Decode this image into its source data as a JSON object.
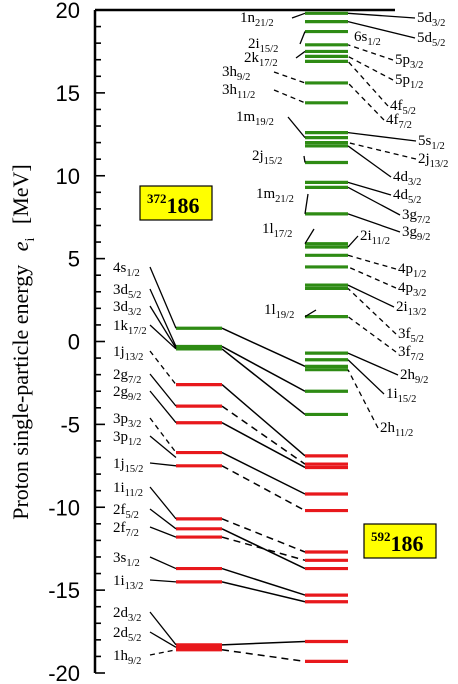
{
  "chart_data": {
    "type": "diagram",
    "ylabel": "Proton single-particle energy",
    "ylabel_symbol": "e",
    "ylabel_symbol_sub": "i",
    "ylabel_unit": "[MeV]",
    "ylim": [
      -20,
      20
    ],
    "yticks": [
      "20",
      "15",
      "10",
      "5",
      "0",
      "-5",
      "-10",
      "-15",
      "-20"
    ],
    "colors": {
      "occupied": "#e8181c",
      "unoccupied": "#2e8b14",
      "box": "#ffff00"
    },
    "nuclei": [
      {
        "mass": "372",
        "Z": "186",
        "column": "left"
      },
      {
        "mass": "592",
        "Z": "186",
        "column": "right"
      }
    ],
    "left_labels": [
      {
        "n": "4s",
        "j": "1/2"
      },
      {
        "n": "3d",
        "j": "5/2"
      },
      {
        "n": "3d",
        "j": "3/2"
      },
      {
        "n": "1k",
        "j": "17/2"
      },
      {
        "n": "1j",
        "j": "13/2"
      },
      {
        "n": "2g",
        "j": "7/2"
      },
      {
        "n": "2g",
        "j": "9/2"
      },
      {
        "n": "3p",
        "j": "3/2"
      },
      {
        "n": "3p",
        "j": "1/2"
      },
      {
        "n": "1j",
        "j": "15/2"
      },
      {
        "n": "1i",
        "j": "11/2"
      },
      {
        "n": "2f",
        "j": "5/2"
      },
      {
        "n": "2f",
        "j": "7/2"
      },
      {
        "n": "3s",
        "j": "1/2"
      },
      {
        "n": "1i",
        "j": "13/2"
      },
      {
        "n": "2d",
        "j": "3/2"
      },
      {
        "n": "2d",
        "j": "5/2"
      },
      {
        "n": "1h",
        "j": "9/2"
      }
    ],
    "middle_labels": [
      {
        "n": "1n",
        "j": "21/2"
      },
      {
        "n": "2i",
        "j": "15/2"
      },
      {
        "n": "2k",
        "j": "17/2"
      },
      {
        "n": "3h",
        "j": "9/2"
      },
      {
        "n": "3h",
        "j": "11/2"
      },
      {
        "n": "1m",
        "j": "19/2"
      },
      {
        "n": "2j",
        "j": "15/2"
      },
      {
        "n": "1m",
        "j": "21/2"
      },
      {
        "n": "1l",
        "j": "17/2"
      },
      {
        "n": "1l",
        "j": "19/2"
      },
      {
        "n": "6s",
        "j": "1/2"
      }
    ],
    "right_labels": [
      {
        "n": "5d",
        "j": "3/2"
      },
      {
        "n": "5d",
        "j": "5/2"
      },
      {
        "n": "5p",
        "j": "3/2"
      },
      {
        "n": "5p",
        "j": "1/2"
      },
      {
        "n": "4f",
        "j": "5/2"
      },
      {
        "n": "4f",
        "j": "7/2"
      },
      {
        "n": "5s",
        "j": "1/2"
      },
      {
        "n": "2j",
        "j": "13/2"
      },
      {
        "n": "4d",
        "j": "3/2"
      },
      {
        "n": "4d",
        "j": "5/2"
      },
      {
        "n": "3g",
        "j": "7/2"
      },
      {
        "n": "3g",
        "j": "9/2"
      },
      {
        "n": "2i",
        "j": "11/2"
      },
      {
        "n": "4p",
        "j": "1/2"
      },
      {
        "n": "4p",
        "j": "3/2"
      },
      {
        "n": "2i",
        "j": "13/2"
      },
      {
        "n": "3f",
        "j": "5/2"
      },
      {
        "n": "3f",
        "j": "7/2"
      },
      {
        "n": "2h",
        "j": "9/2"
      },
      {
        "n": "1i",
        "j": "15/2"
      },
      {
        "n": "2h",
        "j": "11/2"
      }
    ],
    "left_levels": [
      {
        "e": 0.8,
        "occ": false
      },
      {
        "e": -0.3,
        "occ": false
      },
      {
        "e": -0.45,
        "occ": false
      },
      {
        "e": -2.6,
        "occ": true
      },
      {
        "e": -3.9,
        "occ": true
      },
      {
        "e": -4.9,
        "occ": true
      },
      {
        "e": -6.7,
        "occ": true
      },
      {
        "e": -7.5,
        "occ": true
      },
      {
        "e": -10.7,
        "occ": true
      },
      {
        "e": -11.3,
        "occ": true
      },
      {
        "e": -11.8,
        "occ": true
      },
      {
        "e": -13.7,
        "occ": true
      },
      {
        "e": -14.5,
        "occ": true
      },
      {
        "e": -18.3,
        "occ": true
      },
      {
        "e": -18.45,
        "occ": true
      },
      {
        "e": -18.6,
        "occ": true
      }
    ],
    "right_levels": [
      {
        "e": 19.8,
        "occ": false
      },
      {
        "e": 19.3,
        "occ": false
      },
      {
        "e": 18.7,
        "occ": false
      },
      {
        "e": 17.9,
        "occ": false
      },
      {
        "e": 17.5,
        "occ": false
      },
      {
        "e": 17.2,
        "occ": false
      },
      {
        "e": 16.9,
        "occ": false
      },
      {
        "e": 15.6,
        "occ": false
      },
      {
        "e": 14.4,
        "occ": false
      },
      {
        "e": 12.6,
        "occ": false
      },
      {
        "e": 12.3,
        "occ": false
      },
      {
        "e": 12.0,
        "occ": false
      },
      {
        "e": 11.8,
        "occ": false
      },
      {
        "e": 10.8,
        "occ": false
      },
      {
        "e": 9.6,
        "occ": false
      },
      {
        "e": 9.3,
        "occ": false
      },
      {
        "e": 7.7,
        "occ": false
      },
      {
        "e": 5.9,
        "occ": false
      },
      {
        "e": 5.7,
        "occ": false
      },
      {
        "e": 5.2,
        "occ": false
      },
      {
        "e": 4.5,
        "occ": false
      },
      {
        "e": 3.4,
        "occ": false
      },
      {
        "e": 3.2,
        "occ": false
      },
      {
        "e": 1.5,
        "occ": false
      },
      {
        "e": -0.7,
        "occ": false
      },
      {
        "e": -1.1,
        "occ": false
      },
      {
        "e": -1.5,
        "occ": false
      },
      {
        "e": -1.7,
        "occ": false
      },
      {
        "e": -3.0,
        "occ": false
      },
      {
        "e": -4.4,
        "occ": false
      },
      {
        "e": -6.9,
        "occ": true
      },
      {
        "e": -7.4,
        "occ": true
      },
      {
        "e": -7.6,
        "occ": true
      },
      {
        "e": -9.2,
        "occ": true
      },
      {
        "e": -10.2,
        "occ": true
      },
      {
        "e": -12.7,
        "occ": true
      },
      {
        "e": -13.2,
        "occ": true
      },
      {
        "e": -13.7,
        "occ": true
      },
      {
        "e": -15.3,
        "occ": true
      },
      {
        "e": -15.7,
        "occ": true
      },
      {
        "e": -18.1,
        "occ": true
      },
      {
        "e": -19.3,
        "occ": true
      }
    ],
    "correlations": [
      {
        "from": 0.8,
        "to": -1.5,
        "style": "solid"
      },
      {
        "from": -0.3,
        "to": -3.0,
        "style": "solid"
      },
      {
        "from": -0.45,
        "to": -4.4,
        "style": "solid"
      },
      {
        "from": -2.6,
        "to": -6.9,
        "style": "solid"
      },
      {
        "from": -3.9,
        "to": -7.4,
        "style": "dashed"
      },
      {
        "from": -4.9,
        "to": -7.6,
        "style": "solid"
      },
      {
        "from": -6.7,
        "to": -9.2,
        "style": "solid"
      },
      {
        "from": -7.5,
        "to": -10.2,
        "style": "dashed"
      },
      {
        "from": -10.7,
        "to": -12.7,
        "style": "dashed"
      },
      {
        "from": -11.3,
        "to": -13.7,
        "style": "solid"
      },
      {
        "from": -11.8,
        "to": -13.2,
        "style": "dashed"
      },
      {
        "from": -13.7,
        "to": -15.3,
        "style": "solid"
      },
      {
        "from": -14.5,
        "to": -15.7,
        "style": "solid"
      },
      {
        "from": -18.3,
        "to": -18.1,
        "style": "solid"
      },
      {
        "from": -18.6,
        "to": -19.3,
        "style": "dashed"
      }
    ]
  }
}
